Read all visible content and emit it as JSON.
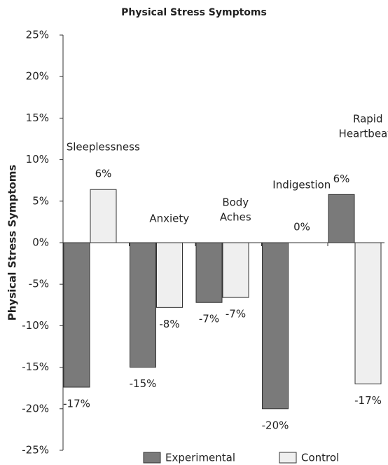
{
  "chart_data": {
    "type": "bar",
    "title": "Physical Stress Symptoms",
    "y_label": "Physical Stress Symptoms",
    "categories": [
      [
        "Sleeplessness"
      ],
      [
        "Anxiety"
      ],
      [
        "Body",
        "Aches"
      ],
      [
        "Indigestion"
      ],
      [
        "Rapid",
        "Heartbeats"
      ]
    ],
    "series": [
      {
        "name": "Experimental",
        "color": "#7a7a7a",
        "values": [
          -17.4,
          -15,
          -7.2,
          -20,
          5.8
        ],
        "value_labels": [
          "-17%",
          "-15%",
          "-7%",
          "-20%",
          "6%"
        ]
      },
      {
        "name": "Control",
        "color": "#efefef",
        "values": [
          6.4,
          -7.8,
          -6.6,
          0,
          -17
        ],
        "value_labels": [
          "6%",
          "-8%",
          "-7%",
          "0%",
          "-17%"
        ]
      }
    ],
    "ylim": [
      -25,
      25
    ],
    "yticks": [
      {
        "value": -25,
        "label": "-25%"
      },
      {
        "value": -20,
        "label": "-20%"
      },
      {
        "value": -15,
        "label": "-15%"
      },
      {
        "value": -10,
        "label": "-10%"
      },
      {
        "value": -5,
        "label": "-5%"
      },
      {
        "value": 0,
        "label": "0%"
      },
      {
        "value": 5,
        "label": "5%"
      },
      {
        "value": 10,
        "label": "10%"
      },
      {
        "value": 15,
        "label": "15%"
      },
      {
        "value": 20,
        "label": "20%"
      },
      {
        "value": 25,
        "label": "25%"
      }
    ],
    "grid": false
  }
}
